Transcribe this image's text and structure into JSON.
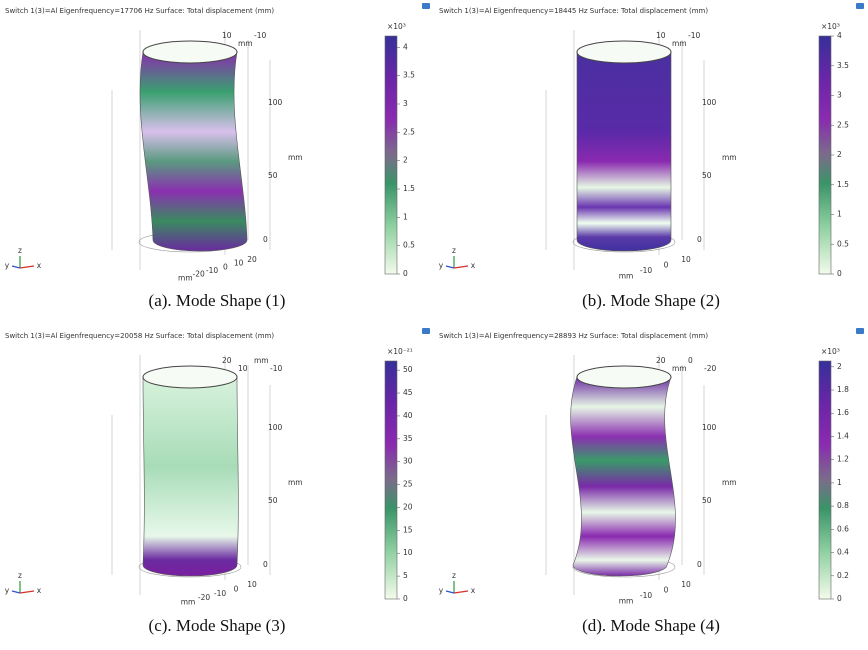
{
  "panels": [
    {
      "header": "Switch 1(3)=Al Eigenfrequency=17706 Hz   Surface: Total displacement (mm)",
      "colorbar": {
        "exponent": "×10³",
        "lim": [
          0,
          4.2
        ],
        "ticks": [
          0,
          0.5,
          1,
          1.5,
          2,
          2.5,
          3,
          3.5,
          4
        ]
      },
      "axes": {
        "top": [
          "10",
          "mm",
          "-10"
        ],
        "right": [
          "100",
          "mm",
          "50",
          "0"
        ],
        "bottom": [
          "20",
          "10",
          "0",
          "-10",
          "-20",
          "mm"
        ]
      },
      "triad": [
        "y",
        "z",
        "x"
      ],
      "caption": "(a). Mode Shape (1)"
    },
    {
      "header": "Switch 1(3)=Al Eigenfrequency=18445 Hz   Surface: Total displacement (mm)",
      "colorbar": {
        "exponent": "×10³",
        "lim": [
          0,
          4
        ],
        "ticks": [
          0,
          0.5,
          1,
          1.5,
          2,
          2.5,
          3,
          3.5,
          4
        ]
      },
      "axes": {
        "top": [
          "10",
          "mm",
          "-10"
        ],
        "right": [
          "100",
          "mm",
          "50",
          "0"
        ],
        "bottom": [
          "10",
          "0",
          "-10",
          "mm"
        ]
      },
      "triad": [
        "y",
        "z",
        "x"
      ],
      "caption": "(b). Mode Shape (2)"
    },
    {
      "header": "Switch 1(3)=Al Eigenfrequency=20058 Hz   Surface: Total displacement (mm)",
      "colorbar": {
        "exponent": "×10⁻²¹",
        "lim": [
          0,
          52
        ],
        "ticks": [
          0,
          5,
          10,
          15,
          20,
          25,
          30,
          35,
          40,
          45,
          50
        ]
      },
      "axes": {
        "top": [
          "20",
          "10",
          "mm",
          "-10"
        ],
        "right": [
          "100",
          "mm",
          "50",
          "0"
        ],
        "bottom": [
          "10",
          "0",
          "-10",
          "-20",
          "mm"
        ]
      },
      "triad": [
        "y",
        "z",
        "x"
      ],
      "caption": "(c). Mode Shape (3)"
    },
    {
      "header": "Switch 1(3)=Al Eigenfrequency=28893 Hz   Surface: Total displacement (mm)",
      "colorbar": {
        "exponent": "×10³",
        "lim": [
          0,
          2.05
        ],
        "ticks": [
          0,
          0.2,
          0.4,
          0.6,
          0.8,
          1,
          1.2,
          1.4,
          1.6,
          1.8,
          2
        ]
      },
      "axes": {
        "top": [
          "20",
          "mm",
          "0",
          "-20"
        ],
        "right": [
          "100",
          "mm",
          "50",
          "0"
        ],
        "bottom": [
          "10",
          "0",
          "-10",
          "mm"
        ]
      },
      "triad": [
        "y",
        "z",
        "x"
      ],
      "caption": "(d). Mode Shape (4)"
    }
  ]
}
